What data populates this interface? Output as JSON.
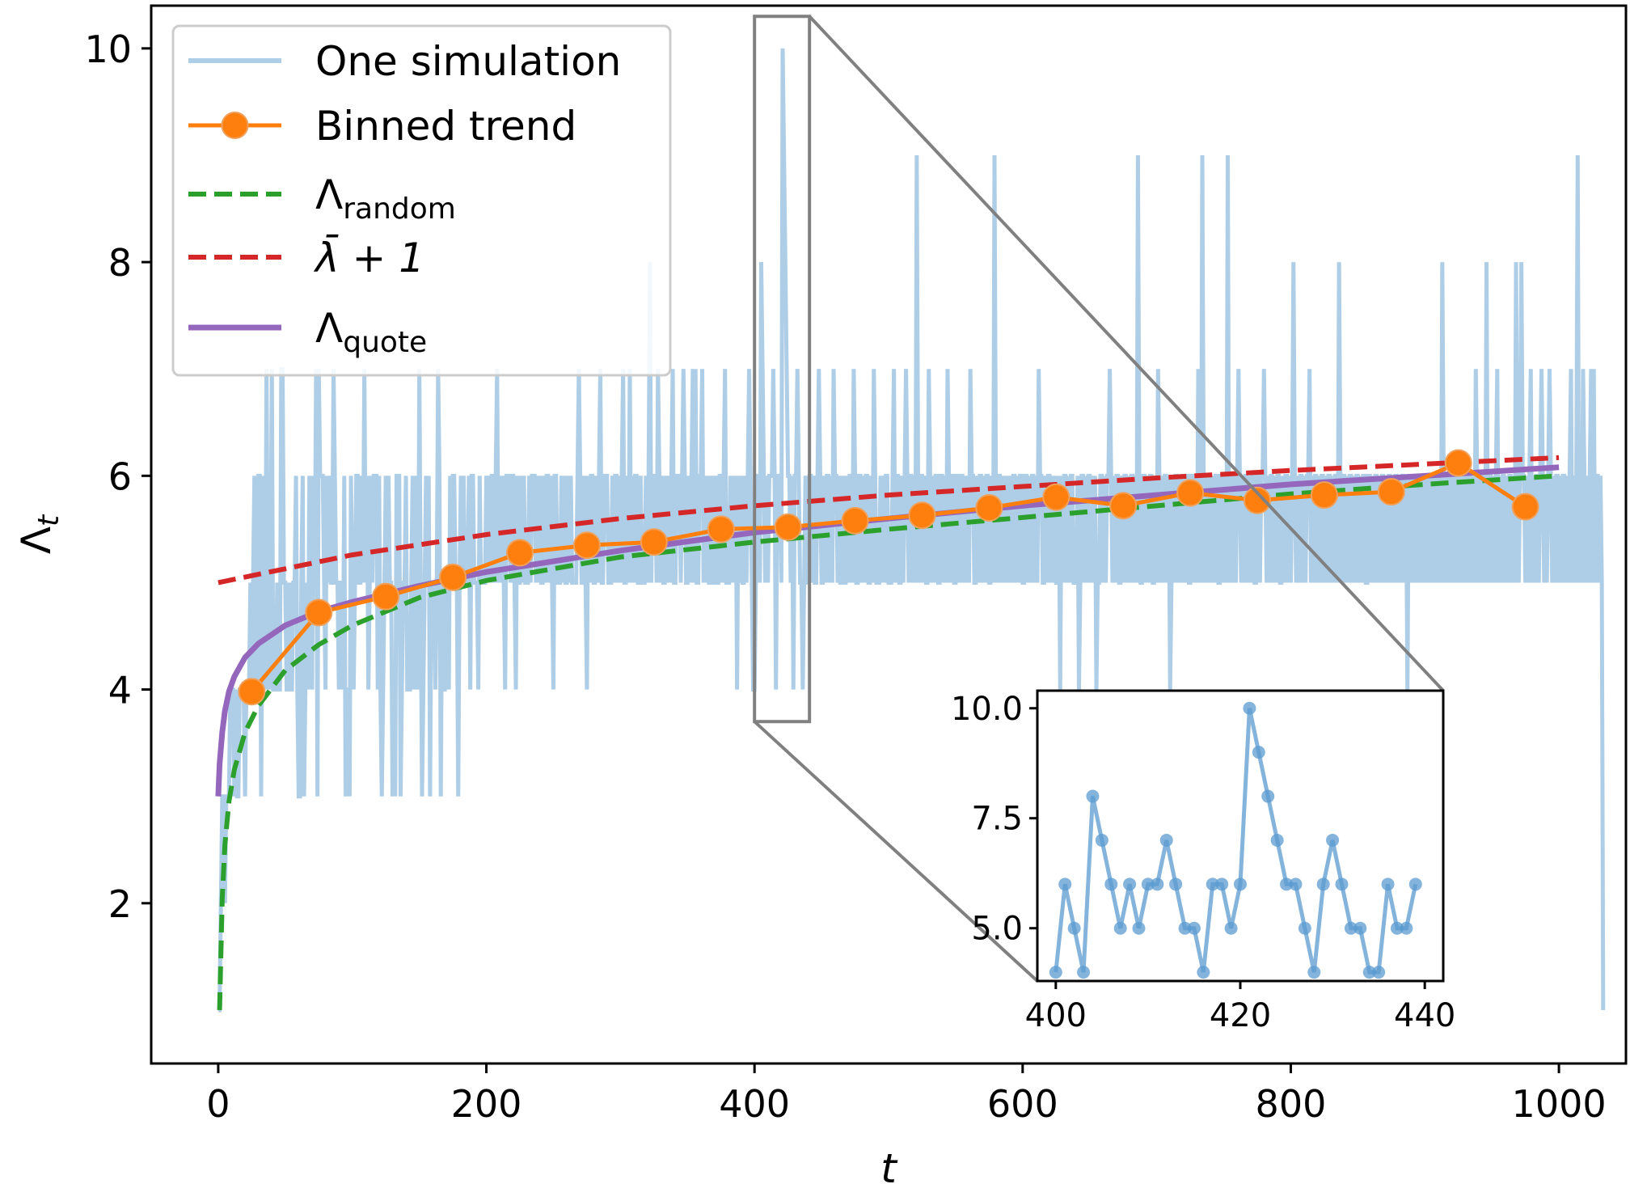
{
  "chart_data": {
    "type": "line",
    "xlabel": "t",
    "ylabel": "Λ",
    "ylabel_subscript": "t",
    "xlim": [
      -50,
      1050
    ],
    "ylim": [
      0.5,
      10.4
    ],
    "xticks": [
      0,
      200,
      400,
      600,
      800,
      1000
    ],
    "yticks": [
      2,
      4,
      6,
      8,
      10
    ],
    "grid": false,
    "legend_position": "top-left",
    "legend": [
      {
        "key": "sim",
        "label": "One simulation",
        "sub": ""
      },
      {
        "key": "binned",
        "label": "Binned trend",
        "sub": ""
      },
      {
        "key": "random",
        "label": "Λ",
        "sub": "random"
      },
      {
        "key": "lambda",
        "label": "λ̄ + 1",
        "sub": ""
      },
      {
        "key": "quote",
        "label": "Λ",
        "sub": "quote"
      }
    ],
    "colors": {
      "sim": "#aecde6",
      "binned": "#ff7f0e",
      "random": "#2ca02c",
      "lambda": "#d62728",
      "quote": "#9467bd",
      "inset": "#5b9bd0",
      "zoom_box": "#808080"
    },
    "series": [
      {
        "name": "Binned trend",
        "x": [
          25,
          75,
          125,
          175,
          225,
          275,
          325,
          375,
          425,
          475,
          525,
          575,
          625,
          675,
          725,
          775,
          825,
          875,
          925,
          975
        ],
        "y": [
          3.98,
          4.72,
          4.87,
          5.05,
          5.28,
          5.35,
          5.38,
          5.5,
          5.52,
          5.58,
          5.63,
          5.7,
          5.8,
          5.72,
          5.84,
          5.77,
          5.82,
          5.85,
          6.12,
          5.71
        ]
      },
      {
        "name": "Λrandom",
        "x": [
          1,
          3,
          5,
          8,
          12,
          20,
          30,
          50,
          75,
          100,
          150,
          200,
          300,
          400,
          500,
          600,
          700,
          800,
          900,
          1000
        ],
        "y": [
          1.0,
          2.05,
          2.55,
          2.95,
          3.25,
          3.6,
          3.85,
          4.18,
          4.42,
          4.6,
          4.86,
          5.02,
          5.24,
          5.38,
          5.5,
          5.61,
          5.72,
          5.83,
          5.92,
          6.0
        ]
      },
      {
        "name": "λ̄ + 1",
        "x": [
          0,
          100,
          200,
          300,
          400,
          500,
          600,
          700,
          800,
          900,
          1000
        ],
        "y": [
          5.0,
          5.26,
          5.45,
          5.6,
          5.72,
          5.82,
          5.9,
          5.98,
          6.05,
          6.11,
          6.17
        ]
      },
      {
        "name": "Λquote",
        "x": [
          0,
          1,
          3,
          5,
          8,
          12,
          20,
          30,
          50,
          75,
          100,
          150,
          200,
          300,
          400,
          500,
          600,
          700,
          800,
          900,
          1000
        ],
        "y": [
          3.0,
          3.3,
          3.6,
          3.8,
          3.98,
          4.12,
          4.3,
          4.43,
          4.6,
          4.73,
          4.82,
          4.97,
          5.1,
          5.3,
          5.47,
          5.6,
          5.72,
          5.82,
          5.92,
          6.0,
          6.08
        ]
      }
    ],
    "simulation": {
      "name": "One simulation",
      "x_start": 0,
      "x_step": 1,
      "y": [
        1,
        1,
        2,
        3,
        3,
        2,
        3,
        3,
        3,
        4,
        4,
        4,
        3,
        4,
        3,
        3,
        4,
        4,
        4,
        4,
        3,
        4,
        4,
        4,
        5,
        4,
        5,
        6,
        4,
        4,
        6,
        6,
        3,
        5,
        6,
        4,
        7,
        5,
        4,
        5,
        7,
        4,
        4,
        4,
        5,
        4,
        4,
        7,
        7,
        5,
        5,
        4,
        4,
        5,
        4,
        4,
        5,
        5,
        6,
        4,
        3,
        3,
        5,
        6,
        3,
        4,
        5,
        4,
        6,
        5,
        4,
        6,
        5,
        7,
        3,
        7,
        6,
        6,
        6,
        5,
        4,
        6,
        5,
        6,
        5,
        5,
        7,
        6,
        5,
        5,
        4,
        5,
        5,
        4,
        6,
        3,
        4,
        4,
        3,
        6,
        5,
        4,
        5,
        6,
        6,
        5,
        5,
        6,
        5,
        7,
        5,
        6,
        4,
        5,
        6,
        5,
        6,
        6,
        6,
        4,
        6,
        4,
        3,
        4,
        5,
        6,
        5,
        6,
        5,
        5,
        3,
        4,
        3,
        6,
        6,
        6,
        3,
        4,
        5,
        5,
        6,
        4,
        4,
        4,
        5,
        6,
        4,
        5,
        6,
        4,
        7,
        5,
        3,
        4,
        5,
        6,
        5,
        6,
        3,
        5,
        5,
        5,
        4,
        5,
        7,
        6,
        3,
        5,
        4,
        4,
        5,
        5,
        4,
        6,
        5,
        6,
        6,
        5,
        5,
        3,
        5,
        6,
        5,
        6,
        5,
        5,
        5,
        6,
        4,
        6,
        6,
        5,
        5,
        5,
        4,
        6,
        5,
        5,
        5,
        5,
        6,
        5,
        6,
        5,
        6,
        6,
        5,
        6,
        7,
        5,
        6,
        5,
        6,
        5,
        4,
        6,
        6,
        6,
        5,
        6,
        6,
        5,
        4,
        6,
        5,
        5,
        6,
        5,
        6,
        5,
        5,
        5,
        6,
        5,
        6,
        6,
        6,
        5,
        6,
        5,
        6,
        5,
        5,
        6,
        5,
        6,
        6,
        5,
        6,
        5,
        4,
        6,
        6,
        5,
        5,
        5,
        6,
        5,
        6,
        5,
        5,
        6,
        5,
        6,
        5,
        5,
        5,
        5,
        6,
        7,
        6,
        5,
        5,
        6,
        5,
        4,
        6,
        5,
        6,
        6,
        5,
        5,
        6,
        5,
        6,
        7,
        5,
        5,
        6,
        6,
        6,
        5,
        5,
        5,
        6,
        5,
        6,
        6,
        5,
        6,
        5,
        6,
        7,
        5,
        5,
        6,
        5,
        7,
        5,
        6,
        5,
        6,
        6,
        5,
        5,
        6,
        5,
        5,
        5,
        6,
        5,
        6,
        8,
        5,
        6,
        6,
        6,
        5,
        7,
        6,
        5,
        6,
        5,
        5,
        6,
        5,
        6,
        5,
        6,
        7,
        5,
        5,
        6,
        6,
        6,
        5,
        6,
        7,
        6,
        5,
        5,
        6,
        5,
        6,
        7,
        5,
        7,
        5,
        5,
        6,
        6,
        7,
        5,
        6,
        5,
        6,
        5,
        5,
        6,
        5,
        5,
        6,
        5,
        5,
        6,
        6,
        5,
        6,
        7,
        5,
        5,
        5,
        6,
        5,
        6,
        5,
        6,
        4,
        6,
        5,
        6,
        5,
        5,
        6,
        5,
        6,
        7,
        6,
        5,
        4,
        4,
        5,
        6,
        6,
        5,
        8,
        7,
        6,
        5,
        6,
        5,
        6,
        6,
        6,
        7,
        6,
        4,
        6,
        6,
        6,
        5,
        10,
        9,
        8,
        7,
        6,
        6,
        5,
        6,
        4,
        6,
        6,
        7,
        6,
        5,
        5,
        4,
        5,
        6,
        5,
        5,
        6,
        6,
        5,
        6,
        5,
        5,
        6,
        7,
        6,
        5,
        5,
        6,
        5,
        6,
        6,
        5,
        6,
        5,
        7,
        6,
        6,
        5,
        6,
        5,
        5,
        6,
        5,
        5,
        6,
        5,
        6,
        6,
        5,
        7,
        6,
        5,
        5,
        6,
        6,
        5,
        6,
        5,
        6,
        6,
        5,
        5,
        6,
        5,
        7,
        6,
        5,
        5,
        5,
        6,
        5,
        6,
        5,
        6,
        6,
        5,
        5,
        5,
        6,
        7,
        5,
        6,
        6,
        5,
        5,
        6,
        5,
        6,
        7,
        6,
        5,
        6,
        6,
        5,
        6,
        5,
        9,
        6,
        5,
        6,
        6,
        5,
        6,
        5,
        5,
        7,
        6,
        5,
        6,
        5,
        6,
        6,
        5,
        5,
        6,
        6,
        5,
        6,
        5,
        7,
        6,
        5,
        6,
        6,
        5,
        5,
        6,
        6,
        5,
        6,
        6,
        5,
        6,
        5,
        6,
        5,
        7,
        6,
        6,
        5,
        5,
        6,
        5,
        6,
        6,
        5,
        6,
        5,
        6,
        6,
        5,
        5,
        6,
        5,
        9,
        6,
        5,
        6,
        6,
        5,
        6,
        5,
        6,
        5,
        6,
        5,
        6,
        5,
        6,
        6,
        5,
        6,
        5,
        6,
        6,
        5,
        5,
        6,
        6,
        5,
        6,
        5,
        6,
        6,
        5,
        6,
        5,
        7,
        6,
        6,
        5,
        5,
        6,
        5,
        6,
        6,
        5,
        6,
        5,
        6,
        5,
        5,
        6,
        4,
        6,
        5,
        6,
        6,
        5,
        6,
        5,
        6,
        6,
        5,
        5,
        5,
        6,
        4,
        5,
        6,
        6,
        5,
        6,
        5,
        6,
        6,
        5,
        6,
        5,
        6,
        4,
        5,
        5,
        6,
        6,
        5,
        6,
        5,
        6,
        6,
        7,
        6,
        5,
        6,
        5,
        6,
        6,
        5,
        5,
        6,
        5,
        6,
        6,
        5,
        6,
        5,
        6,
        6,
        5,
        6,
        5,
        9,
        6,
        5,
        5,
        6,
        6,
        5,
        6,
        5,
        6,
        6,
        5,
        5,
        6,
        5,
        7,
        6,
        5,
        6,
        5,
        6,
        6,
        5,
        6,
        4,
        5,
        6,
        5,
        6,
        6,
        5,
        6,
        5,
        6,
        6,
        5,
        6,
        6,
        5,
        5,
        6,
        6,
        5,
        6,
        5,
        7,
        6,
        5,
        9,
        6,
        5,
        6,
        5,
        6,
        6,
        5,
        6,
        5,
        6,
        6,
        5,
        5,
        6,
        6,
        5,
        6,
        5,
        9,
        5,
        6,
        6,
        5,
        6,
        5,
        6,
        7,
        6,
        5,
        6,
        5,
        6,
        6,
        5,
        6,
        5,
        6,
        6,
        5,
        5,
        6,
        6,
        5,
        6,
        6,
        7,
        6,
        5,
        6,
        5,
        6,
        6,
        5,
        6,
        5,
        6,
        6,
        5,
        5,
        6,
        5,
        6,
        6,
        5,
        6,
        5,
        6,
        8,
        6,
        5,
        6,
        5,
        6,
        6,
        5,
        6,
        5,
        6,
        6,
        7,
        5,
        6,
        5,
        6,
        6,
        5,
        6,
        5,
        6,
        6,
        5,
        6,
        5,
        6,
        6,
        5,
        6,
        5,
        6,
        6,
        5,
        8,
        6,
        5,
        6,
        6,
        5,
        6,
        5,
        6,
        6,
        5,
        6,
        5,
        6,
        6,
        5,
        6,
        5,
        6,
        6,
        5,
        5,
        6,
        6,
        5,
        6,
        5,
        6,
        6,
        5,
        6,
        5,
        6,
        6,
        5,
        6,
        5,
        6,
        6,
        5,
        6,
        5,
        6,
        6,
        5,
        6,
        5,
        6,
        6,
        5,
        6,
        4,
        6,
        6,
        5,
        6,
        5,
        6,
        6,
        5,
        6,
        5,
        6,
        6,
        5,
        6,
        5,
        6,
        6,
        5,
        6,
        5,
        6,
        6,
        5,
        6,
        5,
        8,
        6,
        5,
        6,
        5,
        6,
        6,
        5,
        6,
        5,
        6,
        6,
        5,
        6,
        5,
        6,
        6,
        5,
        6,
        5,
        6,
        6,
        5,
        6,
        5,
        7,
        6,
        5,
        6,
        5,
        6,
        6,
        5,
        8,
        5,
        6,
        6,
        5,
        6,
        5,
        6,
        7,
        5,
        6,
        5,
        6,
        6,
        5,
        6,
        5,
        6,
        6,
        5,
        6,
        5,
        8,
        6,
        5,
        6,
        8,
        6,
        6,
        5,
        6,
        5,
        6,
        7,
        5,
        6,
        5,
        6,
        6,
        5,
        6,
        7,
        6,
        5,
        6,
        5,
        6,
        7,
        6,
        5,
        6,
        5,
        6,
        6,
        5,
        6,
        5,
        6,
        6,
        5,
        6,
        5,
        6,
        7,
        5,
        6,
        5,
        6,
        9,
        5,
        6,
        5,
        7,
        6,
        5,
        6,
        5,
        6,
        7,
        5,
        7,
        5,
        6,
        6,
        5,
        6,
        5,
        1
      ]
    },
    "inset": {
      "xlim": [
        398,
        442
      ],
      "ylim": [
        3.8,
        10.4
      ],
      "xticks": [
        400,
        420,
        440
      ],
      "ytick_labels": [
        "5.0",
        "7.5",
        "10.0"
      ],
      "yticks": [
        5.0,
        7.5,
        10.0
      ],
      "x": [
        400,
        401,
        402,
        403,
        404,
        405,
        406,
        407,
        408,
        409,
        410,
        411,
        412,
        413,
        414,
        415,
        416,
        417,
        418,
        419,
        420,
        421,
        422,
        423,
        424,
        425,
        426,
        427,
        428,
        429,
        430,
        431,
        432,
        433,
        434,
        435,
        436,
        437,
        438,
        439
      ],
      "y": [
        4,
        6,
        5,
        4,
        8,
        7,
        6,
        5,
        6,
        5,
        6,
        6,
        7,
        6,
        5,
        5,
        4,
        6,
        6,
        5,
        6,
        10,
        9,
        8,
        7,
        6,
        6,
        5,
        4,
        6,
        7,
        6,
        5,
        5,
        4,
        4,
        6,
        5,
        5,
        6
      ],
      "zoom_region": {
        "x": [
          400,
          441
        ],
        "y": [
          3.7,
          10.3
        ]
      }
    }
  }
}
